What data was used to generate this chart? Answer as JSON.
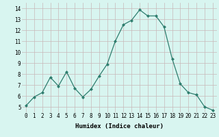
{
  "x": [
    0,
    1,
    2,
    3,
    4,
    5,
    6,
    7,
    8,
    9,
    10,
    11,
    12,
    13,
    14,
    15,
    16,
    17,
    18,
    19,
    20,
    21,
    22,
    23
  ],
  "y": [
    5.1,
    5.9,
    6.3,
    7.7,
    6.9,
    8.2,
    6.7,
    5.9,
    6.6,
    7.8,
    8.9,
    11.0,
    12.5,
    12.9,
    13.85,
    13.3,
    13.3,
    12.3,
    9.4,
    7.1,
    6.3,
    6.1,
    5.0,
    4.7
  ],
  "line_color": "#2e7d6e",
  "marker": "D",
  "marker_size": 2,
  "bg_color": "#d8f5f0",
  "grid_color": "#c8b8b8",
  "xlabel": "Humidex (Indice chaleur)",
  "xlim": [
    -0.5,
    23.5
  ],
  "ylim": [
    4.5,
    14.5
  ],
  "yticks": [
    5,
    6,
    7,
    8,
    9,
    10,
    11,
    12,
    13,
    14
  ],
  "xticks": [
    0,
    1,
    2,
    3,
    4,
    5,
    6,
    7,
    8,
    9,
    10,
    11,
    12,
    13,
    14,
    15,
    16,
    17,
    18,
    19,
    20,
    21,
    22,
    23
  ],
  "xtick_labels": [
    "0",
    "1",
    "2",
    "3",
    "4",
    "5",
    "6",
    "7",
    "8",
    "9",
    "10",
    "11",
    "12",
    "13",
    "14",
    "15",
    "16",
    "17",
    "18",
    "19",
    "20",
    "21",
    "22",
    "23"
  ],
  "tick_fontsize": 5.5,
  "label_fontsize": 6.5
}
